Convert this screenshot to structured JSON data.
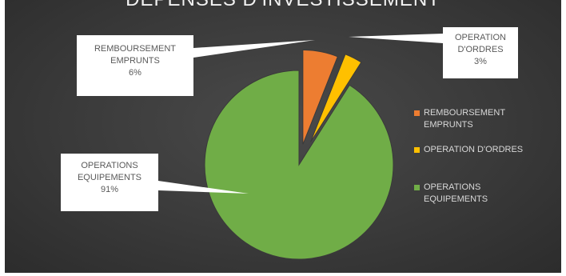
{
  "chart_data": {
    "type": "pie",
    "title": "DEPENSES D'INVESTISSEMENT",
    "slices": [
      {
        "label": "REMBOURSEMENT EMPRUNTS",
        "value": 6,
        "color": "#ed7d31",
        "callout": [
          "REMBOURSEMENT",
          "EMPRUNTS",
          "6%"
        ]
      },
      {
        "label": "OPERATION D'ORDRES",
        "value": 3,
        "color": "#ffc000",
        "callout": [
          "OPERATION",
          "D'ORDRES",
          "3%"
        ]
      },
      {
        "label": "OPERATIONS EQUIPEMENTS",
        "value": 91,
        "color": "#70ad47",
        "callout": [
          "OPERATIONS",
          "EQUIPEMENTS",
          "91%"
        ]
      }
    ],
    "legend": {
      "placement": "right",
      "entries": [
        {
          "lines": [
            "REMBOURSEMENT",
            "EMPRUNTS"
          ],
          "color": "#ed7d31"
        },
        {
          "lines": [
            "OPERATION D'ORDRES"
          ],
          "color": "#ffc000"
        },
        {
          "lines": [
            "OPERATIONS",
            "EQUIPEMENTS"
          ],
          "color": "#70ad47"
        }
      ]
    }
  }
}
